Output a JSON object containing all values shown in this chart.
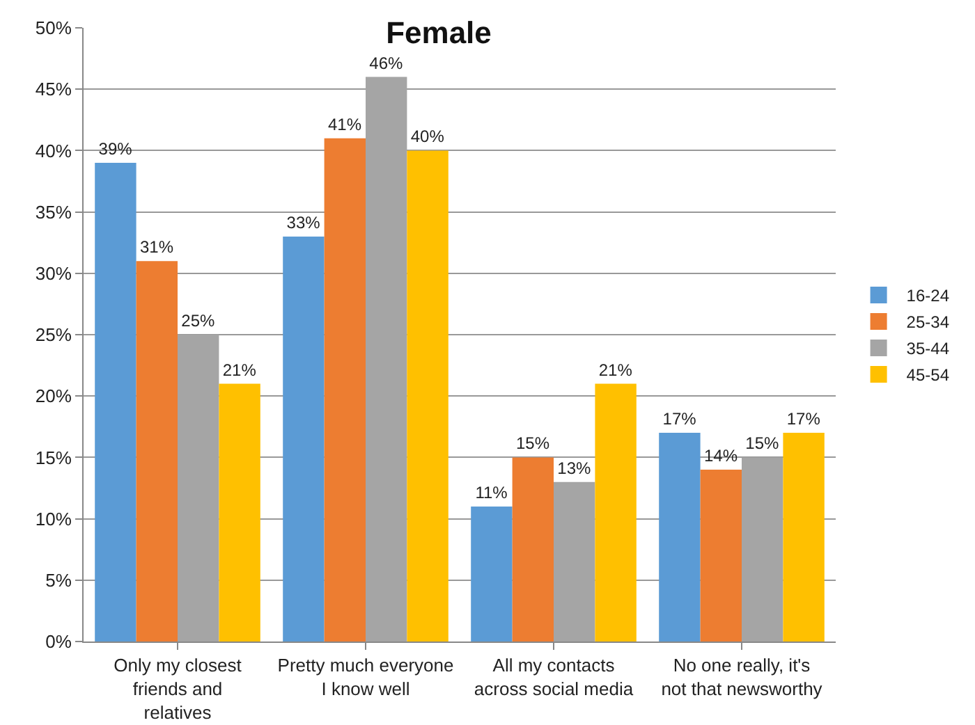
{
  "chart_data": {
    "type": "bar",
    "title": "Female",
    "categories": [
      "Only my closest friends and relatives",
      "Pretty much everyone I know well",
      "All my contacts across social media",
      "No one really, it's not that newsworthy"
    ],
    "series": [
      {
        "name": "16-24",
        "color": "#5b9bd5",
        "values": [
          39,
          33,
          11,
          17
        ],
        "value_labels": [
          "39%",
          "33%",
          "11%",
          "17%"
        ]
      },
      {
        "name": "25-34",
        "color": "#ed7d31",
        "values": [
          31,
          41,
          15,
          14
        ],
        "value_labels": [
          "31%",
          "41%",
          "15%",
          "14%"
        ]
      },
      {
        "name": "35-44",
        "color": "#a5a5a5",
        "values": [
          25,
          46,
          13,
          15
        ],
        "value_labels": [
          "25%",
          "46%",
          "13%",
          "15%"
        ]
      },
      {
        "name": "45-54",
        "color": "#ffc000",
        "values": [
          21,
          40,
          21,
          17
        ],
        "value_labels": [
          "21%",
          "40%",
          "21%",
          "17%"
        ]
      }
    ],
    "ylim": [
      0,
      50
    ],
    "yticks": [
      {
        "value": 0,
        "label": "0%"
      },
      {
        "value": 5,
        "label": "5%"
      },
      {
        "value": 10,
        "label": "10%"
      },
      {
        "value": 15,
        "label": "15%"
      },
      {
        "value": 20,
        "label": "20%"
      },
      {
        "value": 25,
        "label": "25%"
      },
      {
        "value": 30,
        "label": "30%"
      },
      {
        "value": 35,
        "label": "35%"
      },
      {
        "value": 40,
        "label": "40%"
      },
      {
        "value": 45,
        "label": "45%"
      },
      {
        "value": 50,
        "label": "50%"
      }
    ],
    "grid": "y",
    "legend": "right"
  }
}
